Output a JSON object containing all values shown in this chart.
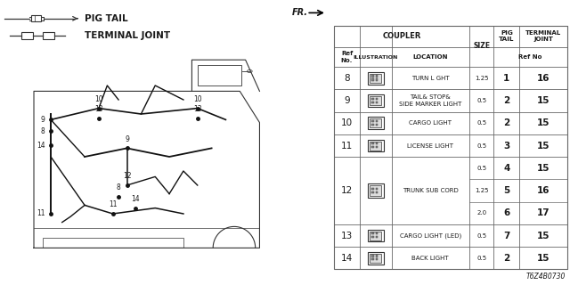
{
  "background_color": "#ffffff",
  "text_color": "#1a1a1a",
  "line_color": "#333333",
  "table_line_color": "#666666",
  "legend": {
    "pig_tail_label": "PIG TAIL",
    "terminal_joint_label": "TERMINAL JOINT"
  },
  "fr_label": "FR.",
  "footnote": "T6Z4B0730",
  "table": {
    "rows": [
      {
        "ref": "8",
        "location": "TURN L GHT",
        "sizes": [
          [
            "1.25",
            "1",
            "16"
          ]
        ]
      },
      {
        "ref": "9",
        "location": "TAIL& STOP&\nSIDE MARKER LIGHT",
        "sizes": [
          [
            "0.5",
            "2",
            "15"
          ]
        ]
      },
      {
        "ref": "10",
        "location": "CARGO LIGHT",
        "sizes": [
          [
            "0.5",
            "2",
            "15"
          ]
        ]
      },
      {
        "ref": "11",
        "location": "LICENSE LIGHT",
        "sizes": [
          [
            "0.5",
            "3",
            "15"
          ]
        ]
      },
      {
        "ref": "12",
        "location": "TRUNK SUB CORD",
        "sizes": [
          [
            "0.5",
            "4",
            "15"
          ],
          [
            "1.25",
            "5",
            "16"
          ],
          [
            "2.0",
            "6",
            "17"
          ]
        ]
      },
      {
        "ref": "13",
        "location": "CARGO LIGHT (LED)",
        "sizes": [
          [
            "0.5",
            "7",
            "15"
          ]
        ]
      },
      {
        "ref": "14",
        "location": "BACK LIGHT",
        "sizes": [
          [
            "0.5",
            "2",
            "15"
          ]
        ]
      }
    ]
  }
}
